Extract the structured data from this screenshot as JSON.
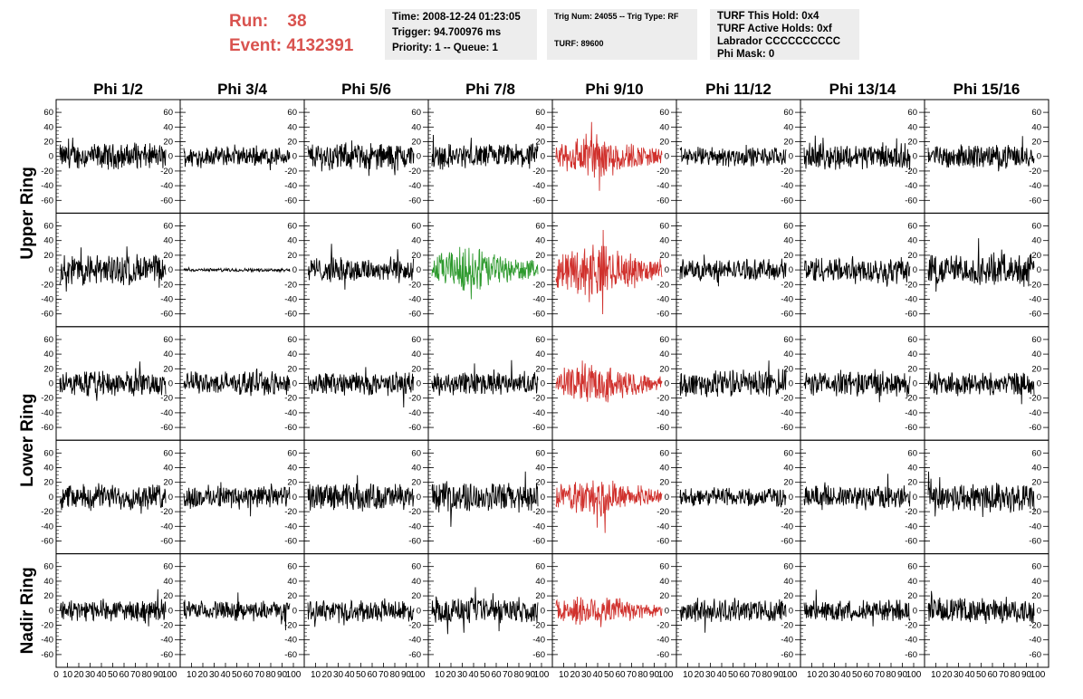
{
  "run_label": "Run:",
  "run_value": "38",
  "event_label": "Event:",
  "event_value": "4132391",
  "info1": {
    "time": "Time: 2008-12-24 01:23:05",
    "trigger": "Trigger: 94.700976 ms",
    "priority": "Priority: 1 -- Queue: 1"
  },
  "info2": {
    "trig": "Trig Num: 24055 -- Trig Type: RF",
    "turf": "TURF: 89600"
  },
  "info3": {
    "hold": "TURF This Hold: 0x4",
    "active": "TURF Active Holds: 0xf",
    "labrador": "Labrador CCCCCCCCCC",
    "phimask": "Phi Mask: 0"
  },
  "colors": {
    "black": "#000000",
    "red": "#d0312d",
    "green": "#2e9a2e",
    "run_text": "#d9534f"
  },
  "chart_data": {
    "type": "line",
    "columns": [
      "Phi 1/2",
      "Phi 3/4",
      "Phi 5/6",
      "Phi 7/8",
      "Phi 9/10",
      "Phi 11/12",
      "Phi 13/14",
      "Phi 15/16"
    ],
    "ring_labels": [
      "Upper Ring",
      "Lower Ring",
      "Nadir Ring"
    ],
    "rows": 5,
    "ylim": [
      -70,
      70
    ],
    "yticks": [
      -60,
      -40,
      -20,
      0,
      20,
      40,
      60
    ],
    "xlim": [
      0,
      100
    ],
    "xticks": [
      0,
      10,
      20,
      30,
      40,
      50,
      60,
      70,
      80,
      90,
      100
    ],
    "panels": [
      {
        "row": 0,
        "col": 0,
        "color": "black",
        "amp": 12
      },
      {
        "row": 0,
        "col": 1,
        "color": "black",
        "amp": 9
      },
      {
        "row": 0,
        "col": 2,
        "color": "black",
        "amp": 13
      },
      {
        "row": 0,
        "col": 3,
        "color": "black",
        "amp": 12
      },
      {
        "row": 0,
        "col": 4,
        "color": "red",
        "amp": 16
      },
      {
        "row": 0,
        "col": 5,
        "color": "black",
        "amp": 9
      },
      {
        "row": 0,
        "col": 6,
        "color": "black",
        "amp": 12
      },
      {
        "row": 0,
        "col": 7,
        "color": "black",
        "amp": 11
      },
      {
        "row": 1,
        "col": 0,
        "color": "black",
        "amp": 15
      },
      {
        "row": 1,
        "col": 1,
        "color": "black",
        "amp": 1.5
      },
      {
        "row": 1,
        "col": 2,
        "color": "black",
        "amp": 12
      },
      {
        "row": 1,
        "col": 3,
        "color": "green",
        "amp": 16
      },
      {
        "row": 1,
        "col": 4,
        "color": "red",
        "amp": 18
      },
      {
        "row": 1,
        "col": 5,
        "color": "black",
        "amp": 10
      },
      {
        "row": 1,
        "col": 6,
        "color": "black",
        "amp": 13
      },
      {
        "row": 1,
        "col": 7,
        "color": "black",
        "amp": 15
      },
      {
        "row": 2,
        "col": 0,
        "color": "black",
        "amp": 12
      },
      {
        "row": 2,
        "col": 1,
        "color": "black",
        "amp": 11
      },
      {
        "row": 2,
        "col": 2,
        "color": "black",
        "amp": 11
      },
      {
        "row": 2,
        "col": 3,
        "color": "black",
        "amp": 11
      },
      {
        "row": 2,
        "col": 4,
        "color": "red",
        "amp": 14
      },
      {
        "row": 2,
        "col": 5,
        "color": "black",
        "amp": 13
      },
      {
        "row": 2,
        "col": 6,
        "color": "black",
        "amp": 12
      },
      {
        "row": 2,
        "col": 7,
        "color": "black",
        "amp": 11
      },
      {
        "row": 3,
        "col": 0,
        "color": "black",
        "amp": 12
      },
      {
        "row": 3,
        "col": 1,
        "color": "black",
        "amp": 11
      },
      {
        "row": 3,
        "col": 2,
        "color": "black",
        "amp": 13
      },
      {
        "row": 3,
        "col": 3,
        "color": "black",
        "amp": 14
      },
      {
        "row": 3,
        "col": 4,
        "color": "red",
        "amp": 13
      },
      {
        "row": 3,
        "col": 5,
        "color": "black",
        "amp": 9
      },
      {
        "row": 3,
        "col": 6,
        "color": "black",
        "amp": 11
      },
      {
        "row": 3,
        "col": 7,
        "color": "black",
        "amp": 14
      },
      {
        "row": 4,
        "col": 0,
        "color": "black",
        "amp": 10
      },
      {
        "row": 4,
        "col": 1,
        "color": "black",
        "amp": 9
      },
      {
        "row": 4,
        "col": 2,
        "color": "black",
        "amp": 10
      },
      {
        "row": 4,
        "col": 3,
        "color": "black",
        "amp": 12
      },
      {
        "row": 4,
        "col": 4,
        "color": "red",
        "amp": 12
      },
      {
        "row": 4,
        "col": 5,
        "color": "black",
        "amp": 11
      },
      {
        "row": 4,
        "col": 6,
        "color": "black",
        "amp": 10
      },
      {
        "row": 4,
        "col": 7,
        "color": "black",
        "amp": 12
      }
    ]
  }
}
